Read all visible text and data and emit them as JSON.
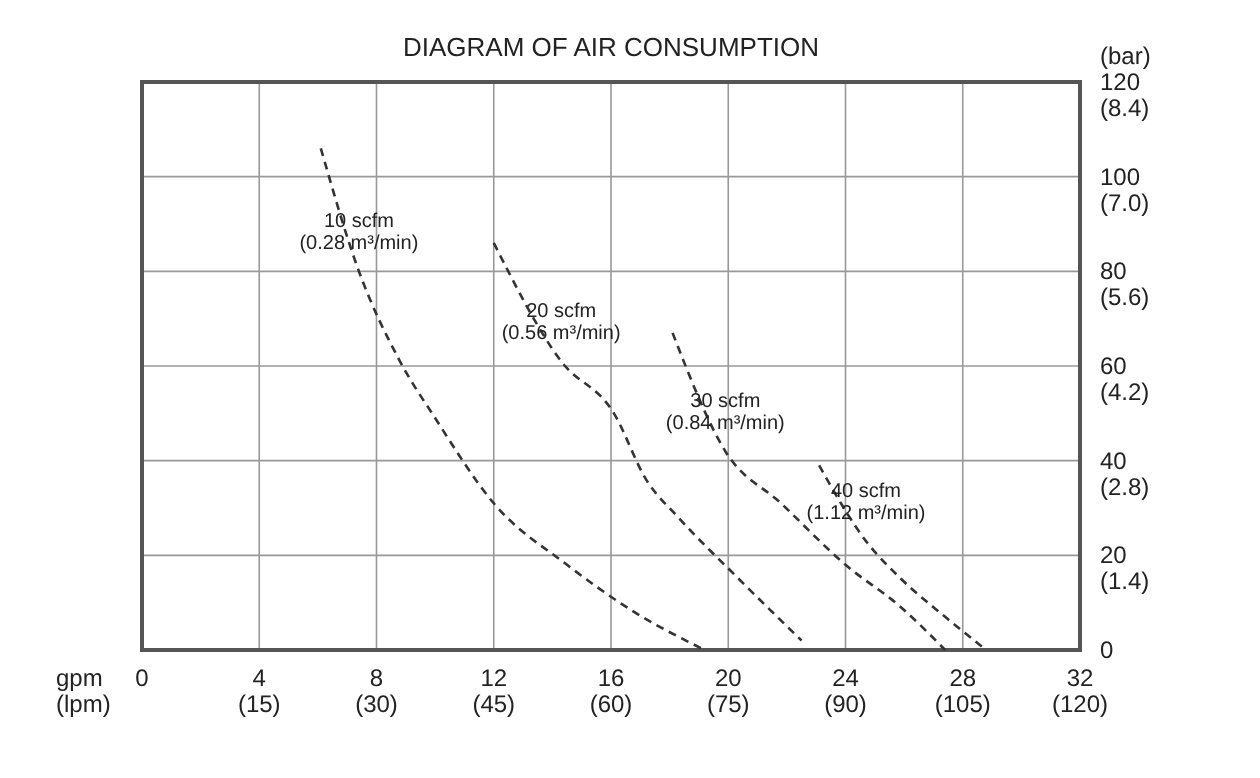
{
  "chart_data": {
    "type": "line",
    "title": "DIAGRAM OF AIR CONSUMPTION",
    "xlabel": "gpm",
    "x2label": "(lpm)",
    "y2label": "(bar)",
    "xlim": [
      0,
      32
    ],
    "ylim": [
      0,
      120
    ],
    "x2lim": [
      0,
      120
    ],
    "y2lim": [
      0,
      8.4
    ],
    "xticks": [
      0,
      4,
      8,
      12,
      16,
      20,
      24,
      28,
      32
    ],
    "x2ticks": [
      {
        "value": 15,
        "label": "(15)"
      },
      {
        "value": 30,
        "label": "(30)"
      },
      {
        "value": 45,
        "label": "(45)"
      },
      {
        "value": 60,
        "label": "(60)"
      },
      {
        "value": 75,
        "label": "(75)"
      },
      {
        "value": 90,
        "label": "(90)"
      },
      {
        "value": 105,
        "label": "(105)"
      },
      {
        "value": 120,
        "label": "(120)"
      }
    ],
    "yticks": [
      0,
      20,
      40,
      60,
      80,
      100,
      120
    ],
    "y2ticks": [
      {
        "value": 1.4,
        "label": "(1.4)"
      },
      {
        "value": 2.8,
        "label": "(2.8)"
      },
      {
        "value": 4.2,
        "label": "(4.2)"
      },
      {
        "value": 5.6,
        "label": "(5.6)"
      },
      {
        "value": 7,
        "label": "(7.0)"
      },
      {
        "value": 8.4,
        "label": "(8.4)"
      }
    ],
    "grid": true,
    "marker": "none",
    "line_style": "dashed",
    "series": [
      {
        "name": "10 scfm\n(0.28 m³/min)",
        "color": "#333333",
        "x": [
          6.1,
          7.4,
          8.8,
          10,
          12,
          14.5,
          16.8,
          19.2
        ],
        "values": [
          106,
          80,
          61,
          49,
          31,
          18,
          8,
          0
        ]
      },
      {
        "name": "20 scfm\n(0.56 m³/min)",
        "color": "#333333",
        "x": [
          12,
          14.3,
          16.1,
          17.2,
          18.3,
          20.2,
          22.5
        ],
        "values": [
          86,
          61,
          50,
          36,
          28,
          16,
          2
        ]
      },
      {
        "name": "30 scfm\n(0.84 m³/min)",
        "color": "#333333",
        "x": [
          18.1,
          19.9,
          21.8,
          24,
          25.9,
          27.4
        ],
        "values": [
          67,
          42,
          31,
          18,
          9,
          0
        ]
      },
      {
        "name": "40 scfm\n(1.12 m³/min)",
        "color": "#333333",
        "x": [
          23.1,
          24.7,
          25.9,
          27.4,
          28.8
        ],
        "values": [
          39,
          23,
          15,
          7,
          0
        ]
      }
    ]
  }
}
